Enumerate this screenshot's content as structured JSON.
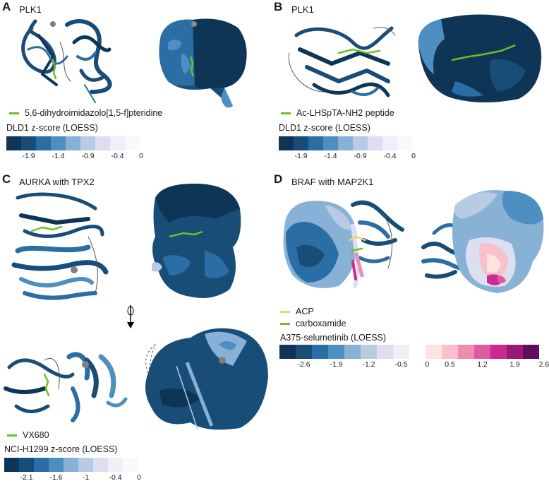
{
  "panelA": {
    "letter": "A",
    "title": "PLK1",
    "ligand_label": "5,6-dihydroimidazolo[1,5-f]pteridine",
    "ligand_color": "#6cc024",
    "scale_label": "DLD1 z-score (LOESS)",
    "colors": [
      "#0e3556",
      "#184d78",
      "#2a6ea5",
      "#4e8fc2",
      "#88b1d6",
      "#b7cbe4",
      "#dcdff0",
      "#f1eef8",
      "#fbf8fc"
    ],
    "ticks": [
      "-1.9",
      "-1.4",
      "-0.9",
      "-0.4",
      "0"
    ]
  },
  "panelB": {
    "letter": "B",
    "title": "PLK1",
    "ligand_label": "Ac-LHSpTA-NH2 peptide",
    "ligand_color": "#6cc024",
    "scale_label": "DLD1 z-score (LOESS)",
    "colors": [
      "#0e3556",
      "#184d78",
      "#2a6ea5",
      "#4e8fc2",
      "#88b1d6",
      "#b7cbe4",
      "#dcdff0",
      "#f1eef8",
      "#fbf8fc"
    ],
    "ticks": [
      "-1.9",
      "-1.4",
      "-0.9",
      "-0.4",
      "0"
    ]
  },
  "panelC": {
    "letter": "C",
    "title": "AURKA with TPX2",
    "ligand_label": "VX680",
    "ligand_color": "#6cc024",
    "scale_label": "NCI-H1299 z-score (LOESS)",
    "colors": [
      "#0e3556",
      "#184d78",
      "#2a6ea5",
      "#4e8fc2",
      "#88b1d6",
      "#b7cbe4",
      "#dcdff0",
      "#f1eef8",
      "#fbf8fc"
    ],
    "ticks": [
      "-2.1",
      "-1.6",
      "-1",
      "-0.4",
      "0"
    ],
    "rotation_symbol": "⌽"
  },
  "panelD": {
    "letter": "D",
    "title": "BRAF with MAP2K1",
    "ligand1_label": "ACP",
    "ligand1_color": "#e6d66b",
    "ligand2_label": "carboxamide",
    "ligand2_color": "#6cc024",
    "scale_label": "A375-selumetinib (LOESS)",
    "colors": [
      "#0e3556",
      "#184d78",
      "#2a6ea5",
      "#4e8fc2",
      "#88b1d6",
      "#b7cbe4",
      "#dcdff0",
      "#f1eef8",
      "#ffffff",
      "#fde4e0",
      "#f7c1cb",
      "#ef8cb3",
      "#e05aa2",
      "#cc2a8f",
      "#9a1877",
      "#5c0f5e"
    ],
    "ticks": [
      "-2.6",
      "-1.9",
      "-1.2",
      "-0.5",
      "0",
      "0.5",
      "1.2",
      "1.9",
      "2.6"
    ]
  }
}
